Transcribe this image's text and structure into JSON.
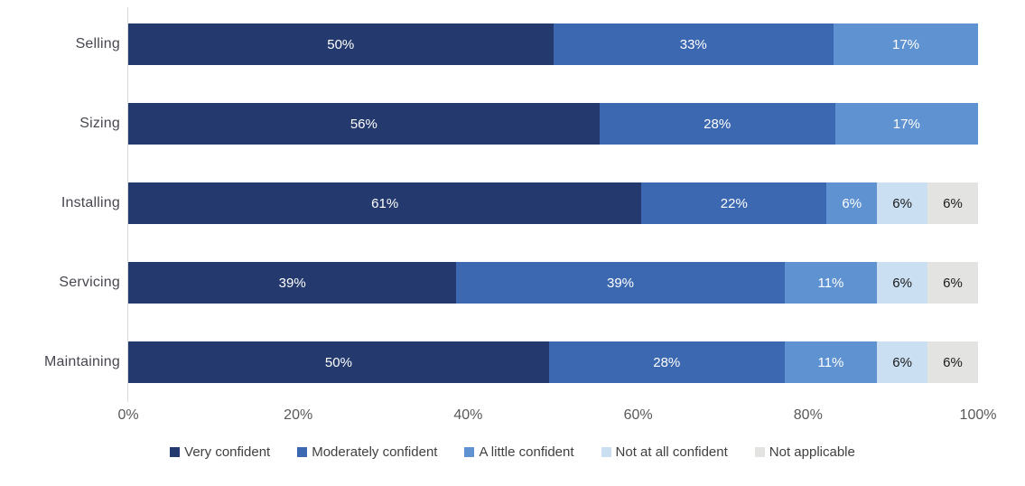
{
  "chart_data": {
    "type": "bar",
    "orientation": "horizontal",
    "stacked": true,
    "title": "",
    "xlabel": "",
    "ylabel": "",
    "xlim": [
      0,
      100
    ],
    "grid": false,
    "legend_position": "bottom",
    "value_suffix": "%",
    "categories": [
      "Selling",
      "Sizing",
      "Installing",
      "Servicing",
      "Maintaining"
    ],
    "x_ticks": [
      {
        "label": "0%",
        "pos": 0
      },
      {
        "label": "20%",
        "pos": 20
      },
      {
        "label": "40%",
        "pos": 40
      },
      {
        "label": "60%",
        "pos": 60
      },
      {
        "label": "80%",
        "pos": 80
      },
      {
        "label": "100%",
        "pos": 100
      }
    ],
    "series": [
      {
        "name": "Very confident",
        "color": "#243A6E",
        "label_color": "#ffffff",
        "values": [
          50,
          56,
          61,
          39,
          50
        ]
      },
      {
        "name": "Moderately confident",
        "color": "#3C68B1",
        "label_color": "#ffffff",
        "values": [
          33,
          28,
          22,
          39,
          28
        ]
      },
      {
        "name": "A little confident",
        "color": "#5E92D1",
        "label_color": "#ffffff",
        "values": [
          17,
          17,
          6,
          11,
          11
        ]
      },
      {
        "name": "Not at all confident",
        "color": "#CBDFF3",
        "label_color": "#1a1a1a",
        "values": [
          0,
          0,
          6,
          6,
          6
        ]
      },
      {
        "name": "Not applicable",
        "color": "#E3E3E1",
        "label_color": "#1a1a1a",
        "values": [
          0,
          0,
          6,
          6,
          6
        ]
      }
    ],
    "colors": {
      "axis_line": "#d9d9d9",
      "tick_label": "#595959",
      "category_label": "#474750",
      "legend_label": "#404040",
      "background": "#ffffff"
    }
  }
}
